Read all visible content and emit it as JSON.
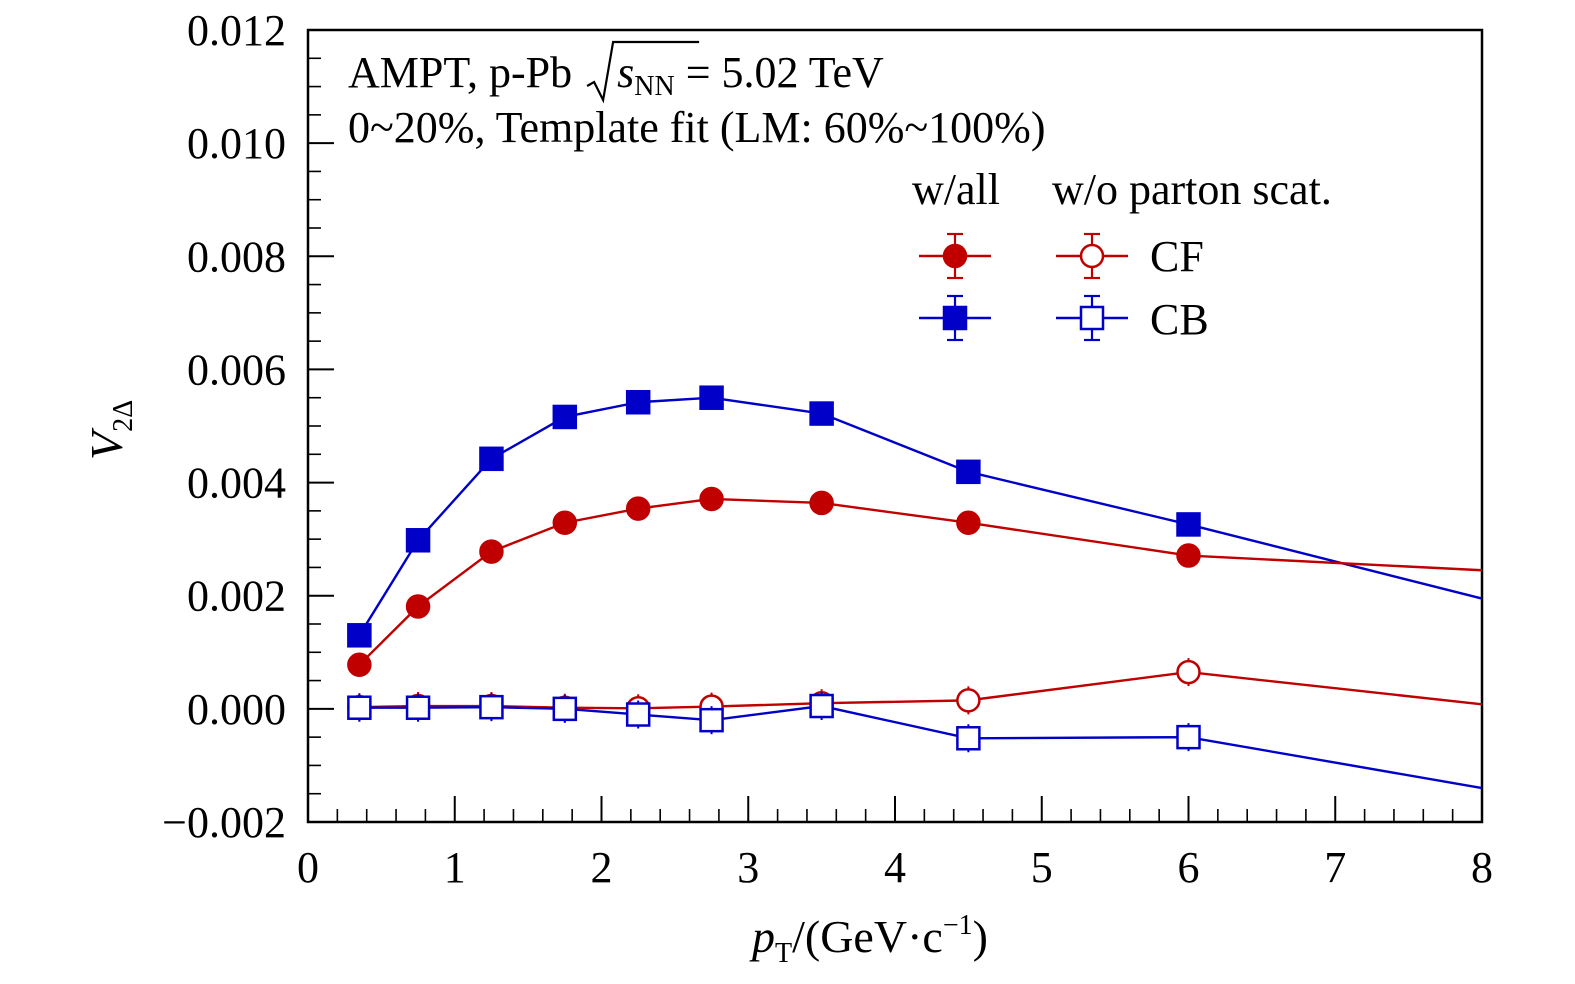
{
  "chart_data": {
    "type": "line",
    "annotation": {
      "line1_prefix": "AMPT, p-Pb ",
      "line1_s": "s",
      "line1_sub": "NN",
      "line1_suffix": " = 5.02 TeV",
      "line2": "0~20%, Template fit (LM: 60%~100%)"
    },
    "xlabel": {
      "main": "p",
      "sub": "T",
      "unit": "/(GeV·c",
      "sup": "−1",
      "close": ")"
    },
    "ylabel": {
      "main": "V",
      "sub": "2Δ"
    },
    "xlim": [
      0,
      8
    ],
    "ylim": [
      -0.002,
      0.012
    ],
    "xticks": [
      0,
      1,
      2,
      3,
      4,
      5,
      6,
      7,
      8
    ],
    "xtick_labels": [
      "0",
      "1",
      "2",
      "3",
      "4",
      "5",
      "6",
      "7",
      "8"
    ],
    "yticks": [
      -0.002,
      0.0,
      0.002,
      0.004,
      0.006,
      0.008,
      0.01,
      0.012
    ],
    "ytick_labels": [
      "−0.002",
      "0.000",
      "0.002",
      "0.004",
      "0.006",
      "0.008",
      "0.010",
      "0.012"
    ],
    "legend": {
      "header_left": "w/all",
      "header_right": "w/o parton scat.",
      "entries": [
        {
          "label": "CF",
          "color": "#c00000",
          "marker": "circle"
        },
        {
          "label": "CB",
          "color": "#0000c8",
          "marker": "square"
        }
      ]
    },
    "series": [
      {
        "key": "cb_all",
        "color": "#0000c8",
        "marker": "square",
        "filled": true,
        "x": [
          0.35,
          0.75,
          1.25,
          1.75,
          2.25,
          2.75,
          3.5,
          4.5,
          6.0
        ],
        "y": [
          0.0013,
          0.00298,
          0.00442,
          0.00516,
          0.00542,
          0.0055,
          0.00522,
          0.00419,
          0.00326
        ],
        "tail_y": 0.00195
      },
      {
        "key": "cf_all",
        "color": "#c00000",
        "marker": "circle",
        "filled": true,
        "x": [
          0.35,
          0.75,
          1.25,
          1.75,
          2.25,
          2.75,
          3.5,
          4.5,
          6.0
        ],
        "y": [
          0.00078,
          0.00181,
          0.00278,
          0.00329,
          0.00354,
          0.00371,
          0.00364,
          0.00329,
          0.00271
        ],
        "tail_y": 0.00245
      },
      {
        "key": "cf_noscat",
        "color": "#c00000",
        "marker": "circle",
        "filled": false,
        "x": [
          0.35,
          0.75,
          1.25,
          1.75,
          2.25,
          2.75,
          3.5,
          4.5,
          6.0
        ],
        "y": [
          3e-05,
          5e-05,
          5e-05,
          2e-05,
          1e-05,
          4e-05,
          0.0001,
          0.00015,
          0.00065
        ],
        "tail_y": 8e-05
      },
      {
        "key": "cb_noscat",
        "color": "#0000c8",
        "marker": "square",
        "filled": false,
        "x": [
          0.35,
          0.75,
          1.25,
          1.75,
          2.25,
          2.75,
          3.5,
          4.5,
          6.0
        ],
        "y": [
          2e-05,
          2e-05,
          3e-05,
          0.0,
          -0.0001,
          -0.0002,
          5e-05,
          -0.00052,
          -0.0005
        ],
        "tail_y": -0.0014
      }
    ]
  }
}
